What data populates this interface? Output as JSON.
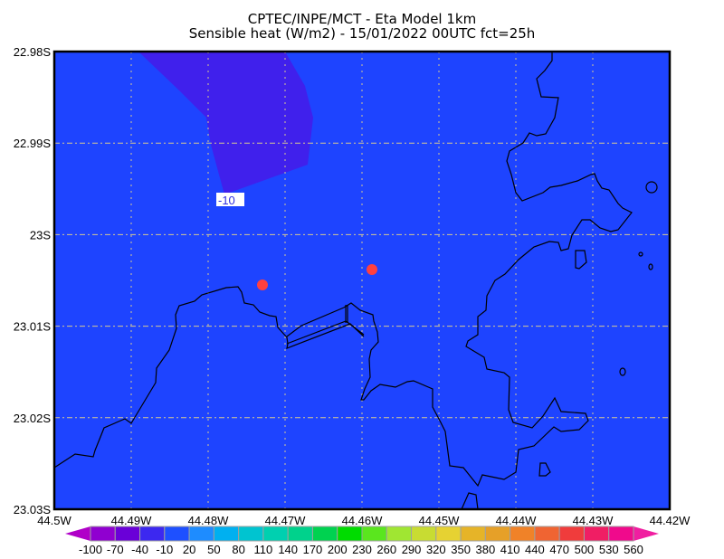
{
  "title": {
    "line1": "CPTEC/INPE/MCT -  Eta Model 1km",
    "line2": "Sensible heat (W/m2) - 15/01/2022 00UTC fct=25h"
  },
  "map": {
    "background_color": "#1e44ff",
    "region_color": "#4020ec",
    "contour_label": "-10",
    "marker_color": "#ff4040",
    "y_ticks": [
      "22.98S",
      "22.99S",
      "23S",
      "23.01S",
      "23.02S",
      "23.03S"
    ],
    "x_ticks": [
      "44.5W",
      "44.49W",
      "44.48W",
      "44.47W",
      "44.46W",
      "44.45W",
      "44.44W",
      "44.43W",
      "44.42W"
    ]
  },
  "colorbar": {
    "labels": [
      "-100",
      "-70",
      "-40",
      "-10",
      "20",
      "50",
      "80",
      "110",
      "140",
      "170",
      "200",
      "230",
      "260",
      "290",
      "320",
      "350",
      "380",
      "410",
      "440",
      "470",
      "500",
      "530",
      "560"
    ],
    "low_color": "#b000c8",
    "high_color": "#f01ea0",
    "colors": [
      "#9000d0",
      "#6a00d8",
      "#3c28f0",
      "#1e50ff",
      "#1e8cff",
      "#00b0f0",
      "#00c4d0",
      "#00d0b0",
      "#00d28c",
      "#00d250",
      "#00dc00",
      "#5ae61e",
      "#a0e632",
      "#c8dc32",
      "#e6d232",
      "#e6b428",
      "#e6a028",
      "#f08228",
      "#f06432",
      "#f03c3c",
      "#f01e64",
      "#f00a8c"
    ]
  }
}
